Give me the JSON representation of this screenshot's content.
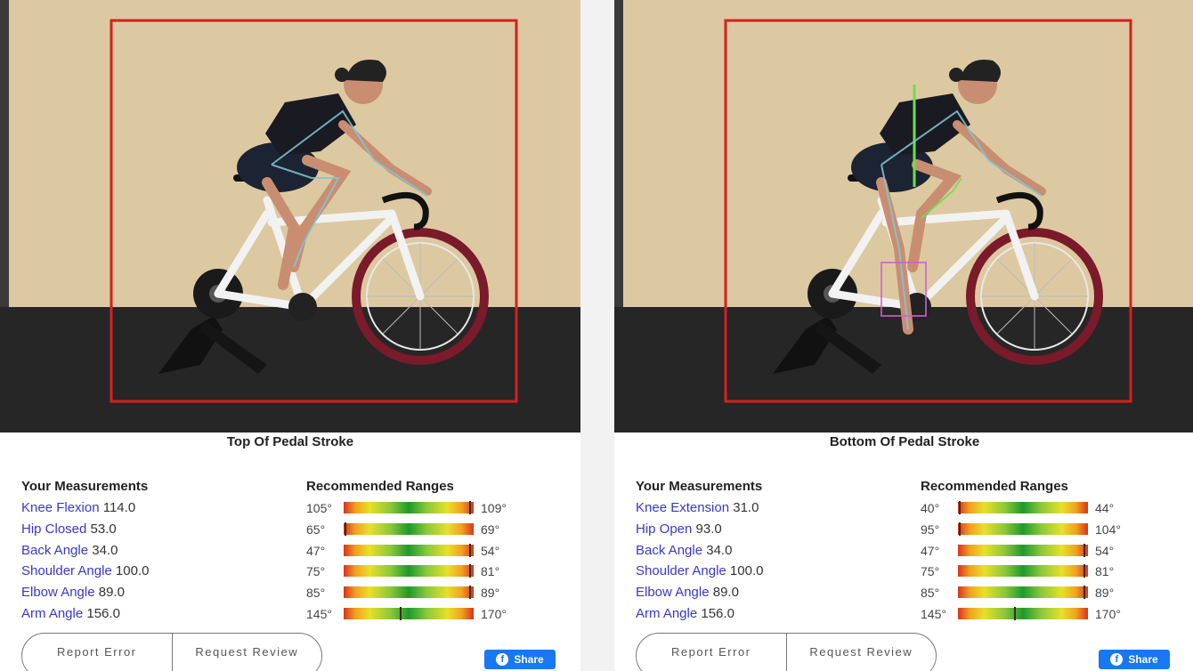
{
  "colors": {
    "link": "#3838c8",
    "detection_box": "#d42020",
    "share_bg": "#1877f2",
    "wall": "#ddc9a1",
    "floor": "#262626"
  },
  "panels": [
    {
      "stroke_title": "Top Of Pedal Stroke",
      "measurements_header": "Your Measurements",
      "ranges_header": "Recommended Ranges",
      "measurements": [
        {
          "name": "Knee Flexion",
          "value": "114.0"
        },
        {
          "name": "Hip Closed",
          "value": "53.0"
        },
        {
          "name": "Back Angle",
          "value": "34.0"
        },
        {
          "name": "Shoulder Angle",
          "value": "100.0"
        },
        {
          "name": "Elbow Angle",
          "value": "89.0"
        },
        {
          "name": "Arm Angle",
          "value": "156.0"
        }
      ],
      "ranges": [
        {
          "min": "105°",
          "max": "109°",
          "marker_position": 0.98
        },
        {
          "min": "65°",
          "max": "69°",
          "marker_position": 0.01
        },
        {
          "min": "47°",
          "max": "54°",
          "marker_position": 0.98
        },
        {
          "min": "75°",
          "max": "81°",
          "marker_position": 0.98
        },
        {
          "min": "85°",
          "max": "89°",
          "marker_position": 0.98
        },
        {
          "min": "145°",
          "max": "170°",
          "marker_position": 0.44
        }
      ],
      "buttons": {
        "report_error": "Report Error",
        "request_review": "Request Review"
      },
      "share_label": "Share"
    },
    {
      "stroke_title": "Bottom Of Pedal Stroke",
      "measurements_header": "Your Measurements",
      "ranges_header": "Recommended Ranges",
      "measurements": [
        {
          "name": "Knee Extension",
          "value": "31.0"
        },
        {
          "name": "Hip Open",
          "value": "93.0"
        },
        {
          "name": "Back Angle",
          "value": "34.0"
        },
        {
          "name": "Shoulder Angle",
          "value": "100.0"
        },
        {
          "name": "Elbow Angle",
          "value": "89.0"
        },
        {
          "name": "Arm Angle",
          "value": "156.0"
        }
      ],
      "ranges": [
        {
          "min": "40°",
          "max": "44°",
          "marker_position": 0.01
        },
        {
          "min": "95°",
          "max": "104°",
          "marker_position": 0.01
        },
        {
          "min": "47°",
          "max": "54°",
          "marker_position": 0.98
        },
        {
          "min": "75°",
          "max": "81°",
          "marker_position": 0.98
        },
        {
          "min": "85°",
          "max": "89°",
          "marker_position": 0.98
        },
        {
          "min": "145°",
          "max": "170°",
          "marker_position": 0.44
        }
      ],
      "buttons": {
        "report_error": "Report Error",
        "request_review": "Request Review"
      },
      "share_label": "Share"
    }
  ]
}
